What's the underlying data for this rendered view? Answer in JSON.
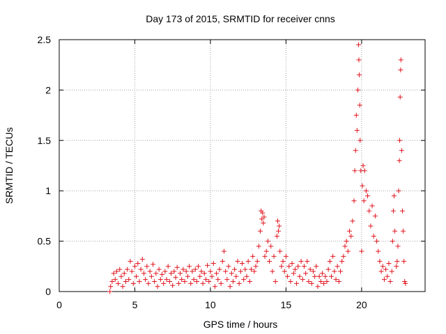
{
  "colors": {
    "marker": "#e0141e",
    "grid": "#a0a0a0",
    "axis": "#000000"
  },
  "chart_data": {
    "type": "scatter",
    "marker": "plus",
    "title": "Day 173 of 2015, SRMTID for receiver cnns",
    "xlabel": "GPS time / hours",
    "ylabel": "SRMTID / TECUs",
    "xlim": [
      0,
      24.2
    ],
    "ylim": [
      0,
      2.5
    ],
    "grid": true,
    "xticks": [
      0,
      5,
      10,
      15,
      20
    ],
    "xtick_labels": [
      "0",
      "5",
      "10",
      "15",
      "20"
    ],
    "yticks": [
      0,
      0.5,
      1,
      1.5,
      2,
      2.5
    ],
    "ytick_labels": [
      "0",
      "0.5",
      "1",
      "1.5",
      "2",
      "2.5"
    ],
    "series": [
      {
        "name": "SRMTID",
        "points": [
          [
            3.35,
            0.0
          ],
          [
            3.4,
            0.05
          ],
          [
            3.5,
            0.1
          ],
          [
            3.6,
            0.18
          ],
          [
            3.7,
            0.12
          ],
          [
            3.8,
            0.2
          ],
          [
            3.9,
            0.08
          ],
          [
            4.0,
            0.22
          ],
          [
            4.1,
            0.15
          ],
          [
            4.2,
            0.05
          ],
          [
            4.3,
            0.18
          ],
          [
            4.4,
            0.1
          ],
          [
            4.5,
            0.22
          ],
          [
            4.6,
            0.12
          ],
          [
            4.7,
            0.3
          ],
          [
            4.8,
            0.2
          ],
          [
            4.9,
            0.08
          ],
          [
            5.0,
            0.25
          ],
          [
            5.1,
            0.15
          ],
          [
            5.2,
            0.28
          ],
          [
            5.3,
            0.1
          ],
          [
            5.4,
            0.22
          ],
          [
            5.5,
            0.32
          ],
          [
            5.6,
            0.18
          ],
          [
            5.7,
            0.12
          ],
          [
            5.8,
            0.25
          ],
          [
            5.9,
            0.08
          ],
          [
            6.0,
            0.2
          ],
          [
            6.1,
            0.15
          ],
          [
            6.2,
            0.27
          ],
          [
            6.3,
            0.1
          ],
          [
            6.4,
            0.18
          ],
          [
            6.5,
            0.05
          ],
          [
            6.6,
            0.22
          ],
          [
            6.7,
            0.12
          ],
          [
            6.8,
            0.17
          ],
          [
            6.9,
            0.08
          ],
          [
            7.0,
            0.2
          ],
          [
            7.1,
            0.12
          ],
          [
            7.2,
            0.25
          ],
          [
            7.3,
            0.1
          ],
          [
            7.4,
            0.18
          ],
          [
            7.5,
            0.06
          ],
          [
            7.6,
            0.2
          ],
          [
            7.7,
            0.14
          ],
          [
            7.8,
            0.24
          ],
          [
            7.9,
            0.08
          ],
          [
            8.0,
            0.18
          ],
          [
            8.1,
            0.12
          ],
          [
            8.2,
            0.22
          ],
          [
            8.3,
            0.1
          ],
          [
            8.4,
            0.2
          ],
          [
            8.5,
            0.15
          ],
          [
            8.6,
            0.25
          ],
          [
            8.7,
            0.08
          ],
          [
            8.8,
            0.2
          ],
          [
            8.9,
            0.12
          ],
          [
            9.0,
            0.22
          ],
          [
            9.1,
            0.1
          ],
          [
            9.2,
            0.25
          ],
          [
            9.3,
            0.15
          ],
          [
            9.4,
            0.2
          ],
          [
            9.5,
            0.08
          ],
          [
            9.6,
            0.18
          ],
          [
            9.7,
            0.12
          ],
          [
            9.8,
            0.26
          ],
          [
            9.9,
            0.1
          ],
          [
            10.0,
            0.2
          ],
          [
            10.1,
            0.15
          ],
          [
            10.2,
            0.28
          ],
          [
            10.3,
            0.05
          ],
          [
            10.4,
            0.18
          ],
          [
            10.5,
            0.12
          ],
          [
            10.6,
            0.22
          ],
          [
            10.7,
            0.08
          ],
          [
            10.8,
            0.3
          ],
          [
            10.9,
            0.4
          ],
          [
            11.0,
            0.2
          ],
          [
            11.1,
            0.12
          ],
          [
            11.2,
            0.25
          ],
          [
            11.3,
            0.05
          ],
          [
            11.4,
            0.18
          ],
          [
            11.5,
            0.1
          ],
          [
            11.6,
            0.22
          ],
          [
            11.7,
            0.15
          ],
          [
            11.8,
            0.3
          ],
          [
            11.9,
            0.08
          ],
          [
            12.0,
            0.2
          ],
          [
            12.1,
            0.28
          ],
          [
            12.2,
            0.12
          ],
          [
            12.3,
            0.22
          ],
          [
            12.4,
            0.15
          ],
          [
            12.5,
            0.3
          ],
          [
            12.6,
            0.1
          ],
          [
            12.7,
            0.22
          ],
          [
            12.8,
            0.35
          ],
          [
            12.9,
            0.2
          ],
          [
            13.0,
            0.25
          ],
          [
            13.1,
            0.3
          ],
          [
            13.2,
            0.45
          ],
          [
            13.3,
            0.6
          ],
          [
            13.35,
            0.8
          ],
          [
            13.4,
            0.72
          ],
          [
            13.45,
            0.78
          ],
          [
            13.5,
            0.68
          ],
          [
            13.55,
            0.74
          ],
          [
            13.6,
            0.35
          ],
          [
            13.7,
            0.4
          ],
          [
            13.8,
            0.5
          ],
          [
            13.9,
            0.3
          ],
          [
            14.0,
            0.45
          ],
          [
            14.1,
            0.2
          ],
          [
            14.2,
            0.35
          ],
          [
            14.3,
            0.1
          ],
          [
            14.4,
            0.55
          ],
          [
            14.45,
            0.7
          ],
          [
            14.5,
            0.6
          ],
          [
            14.55,
            0.65
          ],
          [
            14.6,
            0.4
          ],
          [
            14.7,
            0.25
          ],
          [
            14.8,
            0.3
          ],
          [
            14.9,
            0.2
          ],
          [
            15.0,
            0.35
          ],
          [
            15.1,
            0.15
          ],
          [
            15.2,
            0.25
          ],
          [
            15.3,
            0.1
          ],
          [
            15.4,
            0.28
          ],
          [
            15.5,
            0.18
          ],
          [
            15.6,
            0.22
          ],
          [
            15.7,
            0.08
          ],
          [
            15.8,
            0.25
          ],
          [
            15.9,
            0.15
          ],
          [
            16.0,
            0.3
          ],
          [
            16.1,
            0.12
          ],
          [
            16.2,
            0.25
          ],
          [
            16.3,
            0.18
          ],
          [
            16.4,
            0.3
          ],
          [
            16.5,
            0.1
          ],
          [
            16.6,
            0.22
          ],
          [
            16.7,
            0.08
          ],
          [
            16.8,
            0.2
          ],
          [
            16.9,
            0.15
          ],
          [
            17.0,
            0.25
          ],
          [
            17.1,
            0.05
          ],
          [
            17.2,
            0.15
          ],
          [
            17.3,
            0.1
          ],
          [
            17.4,
            0.18
          ],
          [
            17.5,
            0.08
          ],
          [
            17.6,
            0.15
          ],
          [
            17.7,
            0.1
          ],
          [
            17.8,
            0.22
          ],
          [
            17.9,
            0.3
          ],
          [
            18.0,
            0.15
          ],
          [
            18.1,
            0.35
          ],
          [
            18.2,
            0.2
          ],
          [
            18.3,
            0.12
          ],
          [
            18.4,
            0.25
          ],
          [
            18.5,
            0.1
          ],
          [
            18.6,
            0.2
          ],
          [
            18.7,
            0.3
          ],
          [
            18.8,
            0.35
          ],
          [
            18.9,
            0.45
          ],
          [
            19.0,
            0.5
          ],
          [
            19.1,
            0.4
          ],
          [
            19.2,
            0.6
          ],
          [
            19.3,
            0.55
          ],
          [
            19.4,
            0.7
          ],
          [
            19.5,
            0.9
          ],
          [
            19.55,
            1.2
          ],
          [
            19.6,
            1.4
          ],
          [
            19.65,
            1.75
          ],
          [
            19.7,
            1.6
          ],
          [
            19.75,
            2.0
          ],
          [
            19.8,
            2.45
          ],
          [
            19.82,
            2.3
          ],
          [
            19.85,
            2.15
          ],
          [
            19.88,
            1.85
          ],
          [
            19.9,
            1.5
          ],
          [
            19.95,
            1.2
          ],
          [
            20.0,
            0.4
          ],
          [
            20.05,
            1.05
          ],
          [
            20.1,
            1.25
          ],
          [
            20.15,
            0.9
          ],
          [
            20.2,
            1.2
          ],
          [
            20.3,
            1.0
          ],
          [
            20.4,
            0.95
          ],
          [
            20.5,
            0.8
          ],
          [
            20.6,
            0.65
          ],
          [
            20.7,
            0.85
          ],
          [
            20.8,
            0.55
          ],
          [
            20.9,
            0.75
          ],
          [
            21.0,
            0.5
          ],
          [
            21.1,
            0.4
          ],
          [
            21.2,
            0.3
          ],
          [
            21.3,
            0.2
          ],
          [
            21.4,
            0.25
          ],
          [
            21.5,
            0.12
          ],
          [
            21.6,
            0.22
          ],
          [
            21.7,
            0.15
          ],
          [
            21.8,
            0.28
          ],
          [
            21.9,
            0.1
          ],
          [
            22.0,
            0.2
          ],
          [
            22.05,
            0.5
          ],
          [
            22.1,
            0.8
          ],
          [
            22.15,
            0.95
          ],
          [
            22.2,
            0.6
          ],
          [
            22.3,
            0.25
          ],
          [
            22.35,
            0.3
          ],
          [
            22.4,
            0.45
          ],
          [
            22.45,
            1.0
          ],
          [
            22.5,
            1.3
          ],
          [
            22.52,
            1.5
          ],
          [
            22.55,
            1.93
          ],
          [
            22.58,
            2.2
          ],
          [
            22.6,
            2.3
          ],
          [
            22.65,
            1.4
          ],
          [
            22.7,
            0.8
          ],
          [
            22.75,
            0.6
          ],
          [
            22.8,
            0.3
          ],
          [
            22.85,
            0.1
          ],
          [
            22.9,
            0.08
          ]
        ]
      }
    ]
  }
}
